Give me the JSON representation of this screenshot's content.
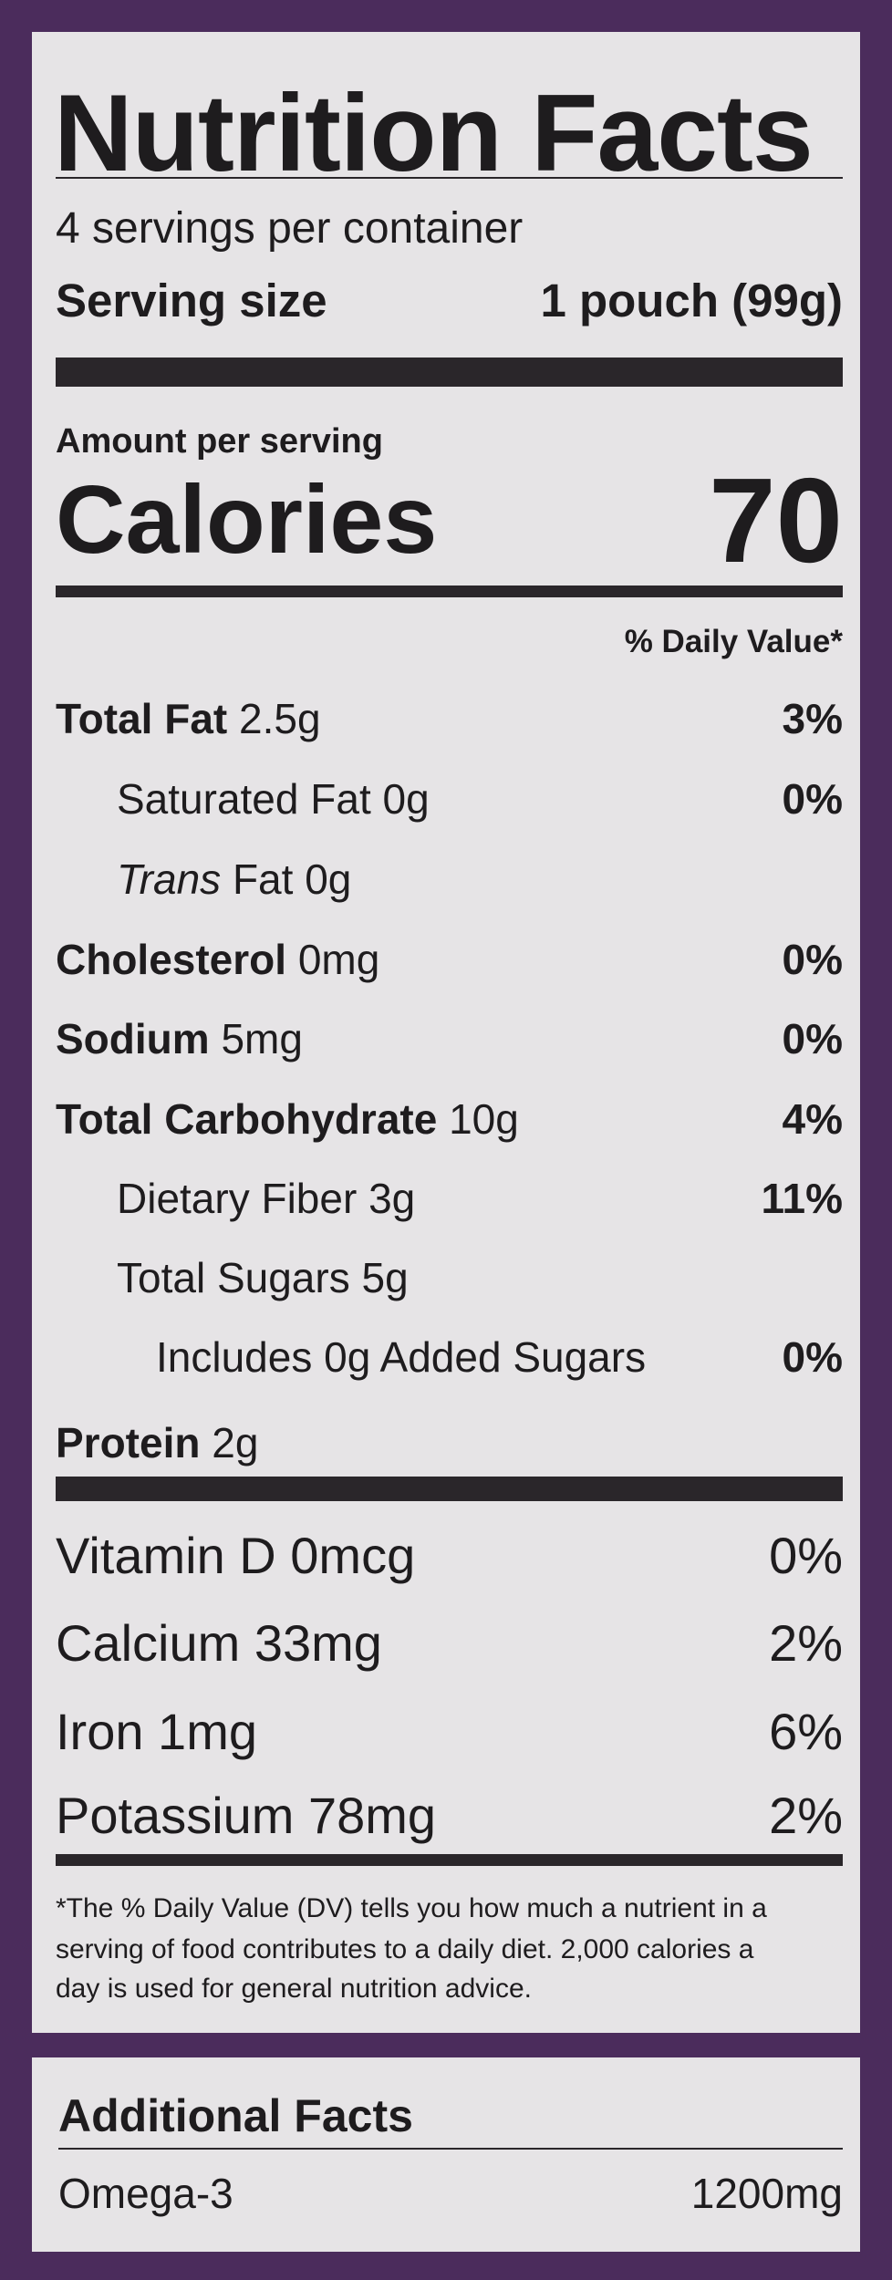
{
  "header": {
    "title": "Nutrition Facts",
    "servings": "4 servings per container",
    "serving_size_label": "Serving size",
    "serving_size_value": "1 pouch (99g)"
  },
  "calories": {
    "amount_label": "Amount per serving",
    "label": "Calories",
    "value": "70"
  },
  "dv_header": "% Daily Value*",
  "nutrients": [
    {
      "name": "Total Fat",
      "amount": "2.5g",
      "dv": "3%"
    },
    {
      "name": "Saturated Fat",
      "amount": "0g",
      "dv": "0%"
    },
    {
      "name_italic": "Trans",
      "name": "Fat",
      "amount": "0g"
    },
    {
      "name": "Cholesterol",
      "amount": "0mg",
      "dv": "0%"
    },
    {
      "name": "Sodium",
      "amount": "5mg",
      "dv": "0%"
    },
    {
      "name": "Total Carbohydrate",
      "amount": "10g",
      "dv": "4%"
    },
    {
      "name": "Dietary Fiber",
      "amount": "3g",
      "dv": "11%"
    },
    {
      "name": "Total Sugars",
      "amount": "5g"
    },
    {
      "name": "Includes 0g Added Sugars",
      "dv": "0%"
    },
    {
      "name": "Protein",
      "amount": "2g"
    }
  ],
  "vitamins": [
    {
      "name": "Vitamin D 0mcg",
      "dv": "0%"
    },
    {
      "name": "Calcium 33mg",
      "dv": "2%"
    },
    {
      "name": "Iron 1mg",
      "dv": "6%"
    },
    {
      "name": "Potassium 78mg",
      "dv": "2%"
    }
  ],
  "footnote": [
    "*The % Daily Value (DV) tells you how much a nutrient in a",
    "serving of food contributes to a daily diet. 2,000 calories a",
    "day is used for general nutrition advice."
  ],
  "additional": {
    "title": "Additional Facts",
    "rows": [
      {
        "name": "Omega-3",
        "value": "1200mg"
      }
    ]
  }
}
